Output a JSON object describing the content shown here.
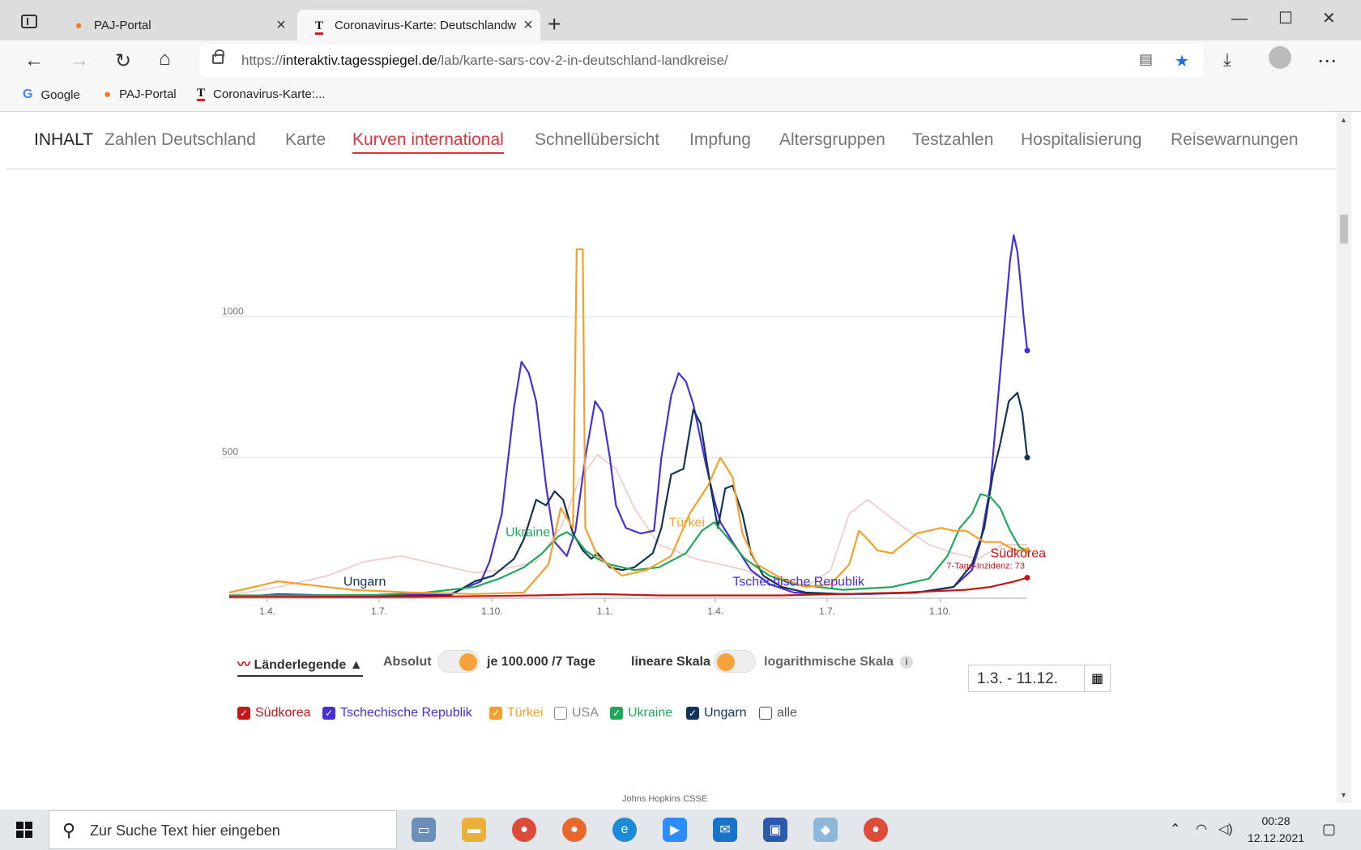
{
  "browser": {
    "tabs": [
      {
        "label": "PAJ-Portal",
        "icon": "location-pin-icon"
      },
      {
        "label": "Coronavirus-Karte: Deutschlandw",
        "icon": "tagesspiegel-logo-icon"
      }
    ],
    "url_prefix": "https://",
    "url_domain": "interaktiv.tagesspiegel.de",
    "url_path": "/lab/karte-sars-cov-2-in-deutschland-landkreise/",
    "bookmarks": [
      {
        "label": "Google",
        "icon": "google-icon"
      },
      {
        "label": "PAJ-Portal",
        "icon": "location-pin-icon"
      },
      {
        "label": "Coronavirus-Karte:...",
        "icon": "tagesspiegel-logo-icon"
      }
    ]
  },
  "sitenav": {
    "title": "INHALT",
    "items": [
      "Zahlen Deutschland",
      "Karte",
      "Kurven international",
      "Schnellübersicht",
      "Impfung",
      "Altersgruppen",
      "Testzahlen",
      "Hospitalisierung",
      "Reisewarnungen"
    ],
    "active": "Kurven international"
  },
  "chart_data": {
    "type": "line",
    "ylim": [
      0,
      1300
    ],
    "yticks": [
      {
        "value": 500,
        "label": "500"
      },
      {
        "value": 1000,
        "label": "1000"
      }
    ],
    "xlim": [
      0,
      650
    ],
    "x_unit": "days since 2020-03-01",
    "xticks": [
      {
        "x": 31,
        "label": "1.4."
      },
      {
        "x": 122,
        "label": "1.7."
      },
      {
        "x": 214,
        "label": "1.10."
      },
      {
        "x": 306,
        "label": "1.1."
      },
      {
        "x": 396,
        "label": "1.4."
      },
      {
        "x": 487,
        "label": "1.7."
      },
      {
        "x": 579,
        "label": "1.10."
      }
    ],
    "series": [
      {
        "name": "Tschechische Republik",
        "color": "#4b2fd6",
        "label": "Tschechische Republik",
        "label_at": [
          410,
          45
        ],
        "points": [
          [
            0,
            5
          ],
          [
            20,
            8
          ],
          [
            40,
            15
          ],
          [
            80,
            10
          ],
          [
            120,
            10
          ],
          [
            180,
            15
          ],
          [
            205,
            60
          ],
          [
            212,
            130
          ],
          [
            222,
            300
          ],
          [
            232,
            680
          ],
          [
            238,
            840
          ],
          [
            244,
            800
          ],
          [
            250,
            700
          ],
          [
            258,
            400
          ],
          [
            265,
            200
          ],
          [
            275,
            150
          ],
          [
            282,
            240
          ],
          [
            290,
            500
          ],
          [
            298,
            700
          ],
          [
            304,
            660
          ],
          [
            310,
            500
          ],
          [
            315,
            330
          ],
          [
            323,
            250
          ],
          [
            335,
            230
          ],
          [
            346,
            240
          ],
          [
            352,
            500
          ],
          [
            360,
            720
          ],
          [
            366,
            800
          ],
          [
            372,
            770
          ],
          [
            378,
            690
          ],
          [
            388,
            480
          ],
          [
            395,
            350
          ],
          [
            400,
            270
          ],
          [
            410,
            200
          ],
          [
            425,
            100
          ],
          [
            440,
            50
          ],
          [
            460,
            20
          ],
          [
            480,
            15
          ],
          [
            520,
            15
          ],
          [
            560,
            20
          ],
          [
            590,
            40
          ],
          [
            605,
            100
          ],
          [
            612,
            200
          ],
          [
            620,
            400
          ],
          [
            626,
            700
          ],
          [
            632,
            1000
          ],
          [
            636,
            1200
          ],
          [
            639,
            1290
          ],
          [
            642,
            1230
          ],
          [
            645,
            1100
          ],
          [
            647,
            1000
          ],
          [
            650,
            880
          ]
        ]
      },
      {
        "name": "Ungarn",
        "color": "#123456",
        "label": "Ungarn",
        "label_at": [
          93,
          45
        ],
        "points": [
          [
            0,
            5
          ],
          [
            30,
            10
          ],
          [
            60,
            5
          ],
          [
            120,
            5
          ],
          [
            180,
            10
          ],
          [
            200,
            60
          ],
          [
            215,
            80
          ],
          [
            232,
            140
          ],
          [
            240,
            210
          ],
          [
            250,
            350
          ],
          [
            258,
            330
          ],
          [
            265,
            380
          ],
          [
            272,
            350
          ],
          [
            280,
            230
          ],
          [
            288,
            170
          ],
          [
            295,
            140
          ],
          [
            300,
            160
          ],
          [
            306,
            130
          ],
          [
            310,
            110
          ],
          [
            320,
            100
          ],
          [
            330,
            110
          ],
          [
            345,
            160
          ],
          [
            352,
            250
          ],
          [
            360,
            440
          ],
          [
            370,
            460
          ],
          [
            378,
            670
          ],
          [
            384,
            620
          ],
          [
            392,
            400
          ],
          [
            398,
            250
          ],
          [
            404,
            390
          ],
          [
            410,
            400
          ],
          [
            418,
            300
          ],
          [
            425,
            160
          ],
          [
            435,
            80
          ],
          [
            450,
            40
          ],
          [
            470,
            20
          ],
          [
            500,
            15
          ],
          [
            560,
            20
          ],
          [
            590,
            40
          ],
          [
            605,
            120
          ],
          [
            615,
            250
          ],
          [
            622,
            440
          ],
          [
            628,
            550
          ],
          [
            635,
            700
          ],
          [
            642,
            730
          ],
          [
            646,
            660
          ],
          [
            650,
            500
          ]
        ]
      },
      {
        "name": "Ukraine",
        "color": "#22a85a",
        "label": "Ukraine",
        "label_at": [
          225,
          220
        ],
        "points": [
          [
            0,
            10
          ],
          [
            60,
            10
          ],
          [
            120,
            12
          ],
          [
            160,
            20
          ],
          [
            200,
            40
          ],
          [
            220,
            70
          ],
          [
            240,
            110
          ],
          [
            255,
            160
          ],
          [
            268,
            220
          ],
          [
            275,
            235
          ],
          [
            283,
            210
          ],
          [
            290,
            170
          ],
          [
            300,
            140
          ],
          [
            310,
            120
          ],
          [
            330,
            100
          ],
          [
            350,
            110
          ],
          [
            372,
            160
          ],
          [
            385,
            240
          ],
          [
            395,
            270
          ],
          [
            405,
            220
          ],
          [
            420,
            140
          ],
          [
            440,
            80
          ],
          [
            460,
            50
          ],
          [
            500,
            30
          ],
          [
            540,
            40
          ],
          [
            570,
            70
          ],
          [
            585,
            150
          ],
          [
            595,
            250
          ],
          [
            605,
            300
          ],
          [
            612,
            370
          ],
          [
            620,
            360
          ],
          [
            628,
            320
          ],
          [
            636,
            240
          ],
          [
            644,
            180
          ],
          [
            650,
            170
          ]
        ]
      },
      {
        "name": "Türkei",
        "color": "#f5a02e",
        "label": "Türkei",
        "label_at": [
          358,
          255
        ],
        "points": [
          [
            0,
            20
          ],
          [
            20,
            40
          ],
          [
            40,
            60
          ],
          [
            60,
            50
          ],
          [
            100,
            30
          ],
          [
            150,
            20
          ],
          [
            200,
            15
          ],
          [
            240,
            20
          ],
          [
            260,
            120
          ],
          [
            270,
            320
          ],
          [
            280,
            250
          ],
          [
            283,
            1240
          ],
          [
            288,
            1240
          ],
          [
            290,
            250
          ],
          [
            300,
            150
          ],
          [
            320,
            80
          ],
          [
            340,
            100
          ],
          [
            360,
            150
          ],
          [
            375,
            300
          ],
          [
            390,
            400
          ],
          [
            400,
            500
          ],
          [
            410,
            430
          ],
          [
            418,
            230
          ],
          [
            430,
            120
          ],
          [
            450,
            70
          ],
          [
            470,
            40
          ],
          [
            490,
            50
          ],
          [
            505,
            120
          ],
          [
            513,
            240
          ],
          [
            520,
            210
          ],
          [
            528,
            170
          ],
          [
            540,
            160
          ],
          [
            560,
            230
          ],
          [
            580,
            250
          ],
          [
            590,
            240
          ],
          [
            600,
            240
          ],
          [
            615,
            200
          ],
          [
            628,
            200
          ],
          [
            640,
            170
          ],
          [
            650,
            170
          ]
        ]
      },
      {
        "name": "Südkorea",
        "color": "#c41616",
        "label": "Südkorea",
        "sublabel": "7-Tage-Inzidenz: 73",
        "label_at": [
          620,
          145
        ],
        "points": [
          [
            0,
            5
          ],
          [
            50,
            5
          ],
          [
            150,
            5
          ],
          [
            250,
            10
          ],
          [
            300,
            15
          ],
          [
            350,
            10
          ],
          [
            400,
            10
          ],
          [
            450,
            10
          ],
          [
            500,
            15
          ],
          [
            550,
            20
          ],
          [
            600,
            30
          ],
          [
            620,
            40
          ],
          [
            630,
            50
          ],
          [
            640,
            60
          ],
          [
            650,
            73
          ]
        ]
      },
      {
        "name": "USA",
        "color": "#f2c7c7",
        "label": "",
        "label_at": [
          0,
          0
        ],
        "points": [
          [
            0,
            10
          ],
          [
            40,
            40
          ],
          [
            80,
            80
          ],
          [
            110,
            130
          ],
          [
            140,
            150
          ],
          [
            170,
            120
          ],
          [
            200,
            90
          ],
          [
            220,
            100
          ],
          [
            250,
            130
          ],
          [
            270,
            250
          ],
          [
            285,
            420
          ],
          [
            300,
            510
          ],
          [
            315,
            460
          ],
          [
            330,
            320
          ],
          [
            350,
            190
          ],
          [
            380,
            140
          ],
          [
            400,
            120
          ],
          [
            420,
            100
          ],
          [
            440,
            60
          ],
          [
            470,
            40
          ],
          [
            490,
            100
          ],
          [
            505,
            300
          ],
          [
            520,
            350
          ],
          [
            535,
            300
          ],
          [
            550,
            250
          ],
          [
            570,
            190
          ],
          [
            590,
            160
          ],
          [
            610,
            140
          ],
          [
            630,
            190
          ],
          [
            650,
            190
          ]
        ]
      }
    ]
  },
  "controls": {
    "legend_toggle": "Länderlegende ▲",
    "absolut": "Absolut",
    "je100": "je 100.000 /7 Tage",
    "linear": "lineare Skala",
    "log": "logarithmische Skala",
    "info": "i",
    "date_range": "1.3. - 11.12."
  },
  "checkboxes": [
    {
      "label": "Südkorea",
      "checked": true,
      "color": "#c41616"
    },
    {
      "label": "Tschechische Republik",
      "checked": true,
      "color": "#4b2fd6"
    },
    {
      "label": "Türkei",
      "checked": true,
      "color": "#f5a02e"
    },
    {
      "label": "USA",
      "checked": false,
      "color": "#888888"
    },
    {
      "label": "Ukraine",
      "checked": true,
      "color": "#22a85a"
    },
    {
      "label": "Ungarn",
      "checked": true,
      "color": "#123456"
    },
    {
      "label": "alle",
      "checked": false,
      "color": "#555555"
    }
  ],
  "source": "Johns Hopkins CSSE",
  "taskbar": {
    "search_placeholder": "Zur Suche Text hier eingeben",
    "time": "00:28",
    "date": "12.12.2021"
  }
}
